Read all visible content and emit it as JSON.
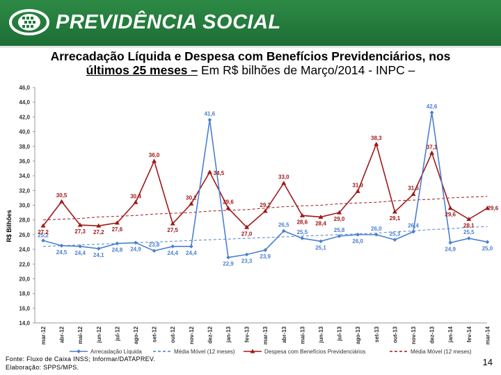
{
  "header": {
    "brand": "PREVIDÊNCIA SOCIAL"
  },
  "title": {
    "line1": "Arrecadação Líquida e Despesa com Benefícios Previdenciários, nos",
    "line2_bold": "últimos 25 meses –",
    "line2_rest": " Em R$ bilhões de Março/2014 - INPC –"
  },
  "colors": {
    "receipts": "#4a7fd0",
    "expenses": "#a01818",
    "header_green": "#1f7a3b"
  },
  "chart_data": {
    "type": "line",
    "ylabel": "R$ Bilhões",
    "ylim": [
      14.0,
      46.0
    ],
    "ytick_labels": [
      "14,0",
      "16,0",
      "18,0",
      "20,0",
      "22,0",
      "24,0",
      "26,0",
      "28,0",
      "30,0",
      "32,0",
      "34,0",
      "36,0",
      "38,0",
      "40,0",
      "42,0",
      "44,0",
      "46,0"
    ],
    "categories": [
      "mar-12",
      "abr-12",
      "mai-12",
      "jun-12",
      "jul-12",
      "ago-12",
      "set-12",
      "out-12",
      "nov-12",
      "dez-12",
      "jan-13",
      "fev-13",
      "mar-13",
      "abr-13",
      "mai-13",
      "jun-13",
      "jul-13",
      "ago-13",
      "set-13",
      "out-13",
      "nov-13",
      "dez-13",
      "jan-14",
      "fev-14",
      "mar-14"
    ],
    "series": [
      {
        "name": "Arrecadação Líquida",
        "values": [
          25.2,
          24.5,
          24.4,
          24.1,
          24.8,
          24.9,
          23.8,
          24.4,
          24.4,
          41.6,
          22.9,
          23.3,
          23.9,
          26.5,
          25.5,
          25.1,
          25.8,
          26.0,
          26.0,
          25.3,
          26.4,
          42.6,
          24.9,
          25.5,
          25.0
        ],
        "labels": [
          "25,2",
          "24,5",
          "24,4",
          "24,1",
          "24,8",
          "24,9",
          "23,8",
          "24,4",
          "24,4",
          "41,6",
          "22,9",
          "23,3",
          "23,9",
          "26,5",
          "25,5",
          "25,1",
          "25,8",
          "26,0",
          "26,0",
          "25,3",
          "26,4",
          "42,6",
          "24,9",
          "25,5",
          "25,0"
        ]
      },
      {
        "name": "Despesa com Benefícios Previdenciários",
        "values": [
          27.2,
          30.5,
          27.3,
          27.2,
          27.6,
          30.4,
          36.0,
          27.5,
          30.2,
          34.5,
          29.6,
          27.0,
          29.2,
          33.0,
          28.6,
          28.4,
          29.0,
          31.9,
          38.3,
          29.1,
          31.5,
          37.1,
          29.6,
          28.1,
          29.6
        ],
        "labels": [
          "27,2",
          "30,5",
          "27,3",
          "27,2",
          "27,6",
          "30,4",
          "36,0",
          "27,5",
          "30,2",
          "34,5",
          "29,6",
          "27,0",
          "29,2",
          "33,0",
          "28,6",
          "28,4",
          "29,0",
          "31,9",
          "38,3",
          "29,1",
          "31,5",
          "37,1",
          "29,6",
          "28,1",
          "29,6"
        ]
      },
      {
        "name": "Média Móvel (12 meses)",
        "ref": "receipts",
        "values": [
          24.4,
          24.5,
          24.6,
          24.7,
          24.8,
          24.9,
          25.0,
          25.1,
          25.2,
          25.3,
          25.4,
          25.5,
          25.6,
          25.7,
          25.8,
          25.9,
          26.0,
          26.1,
          26.2,
          26.4,
          26.5,
          26.7,
          26.8,
          27.0,
          27.1
        ]
      },
      {
        "name": "Média Móvel (12 meses)",
        "ref": "expenses",
        "values": [
          28.0,
          28.1,
          28.2,
          28.4,
          28.5,
          28.6,
          28.8,
          28.9,
          29.0,
          29.2,
          29.3,
          29.4,
          29.6,
          29.8,
          29.9,
          30.0,
          30.2,
          30.3,
          30.4,
          30.6,
          30.7,
          30.8,
          31.0,
          31.1,
          31.2
        ]
      }
    ],
    "legend": [
      "Arrecadação Líquida",
      "Média Móvel (12 meses)",
      "Despesa com Benefícios Previdenciários",
      "Média Móvel (12 meses)"
    ]
  },
  "footer": {
    "source": "Fonte: Fluxo de Caixa INSS; Informar/DATAPREV.",
    "prepared": "Elaboração: SPPS/MPS."
  },
  "page_number": "14"
}
